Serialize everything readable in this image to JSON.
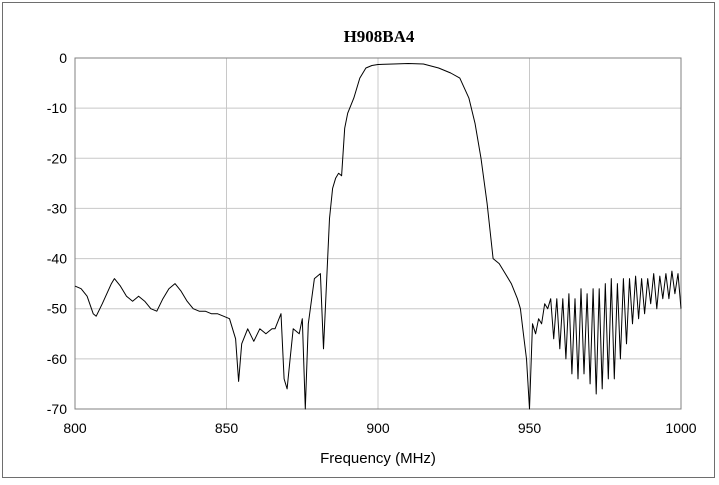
{
  "chart_data": {
    "type": "line",
    "title": "H908BA4",
    "xlabel": "Frequency (MHz)",
    "ylabel": "",
    "xlim": [
      800,
      1000
    ],
    "ylim": [
      -70,
      0
    ],
    "xticks": [
      800,
      850,
      900,
      950,
      1000
    ],
    "yticks": [
      0,
      -10,
      -20,
      -30,
      -40,
      -50,
      -60,
      -70
    ],
    "grid": true,
    "series": [
      {
        "x": [
          800,
          802,
          804,
          806,
          807,
          809,
          812,
          813,
          815,
          817,
          819,
          821,
          823,
          825,
          827,
          829,
          831,
          833,
          835,
          837,
          839,
          841,
          843,
          845,
          847,
          849,
          851,
          853,
          854,
          855,
          857,
          859,
          861,
          863,
          865,
          866,
          868,
          869,
          870,
          871,
          872,
          874,
          875,
          876,
          877,
          879,
          881,
          882,
          883,
          884,
          885,
          886,
          887,
          888,
          889,
          890,
          892,
          894,
          896,
          898,
          900,
          905,
          910,
          915,
          920,
          924,
          927,
          930,
          932,
          934,
          936,
          938,
          940,
          942,
          944,
          946,
          947,
          948,
          949,
          950,
          951,
          952,
          953,
          954,
          955,
          956,
          957,
          958,
          959,
          960,
          961,
          962,
          963,
          964,
          965,
          966,
          967,
          968,
          969,
          970,
          971,
          972,
          973,
          974,
          975,
          976,
          977,
          978,
          979,
          980,
          981,
          982,
          983,
          984,
          985,
          986,
          987,
          988,
          989,
          990,
          991,
          992,
          993,
          994,
          995,
          996,
          997,
          998,
          999,
          1000
        ],
        "y": [
          -45.5,
          -46,
          -47.5,
          -51,
          -51.5,
          -49,
          -45,
          -44,
          -45.5,
          -47.5,
          -48.5,
          -47.5,
          -48.5,
          -50,
          -50.5,
          -48,
          -46,
          -45,
          -46.5,
          -48.5,
          -50,
          -50.5,
          -50.5,
          -51,
          -51,
          -51.5,
          -52,
          -56,
          -64.5,
          -57,
          -54,
          -56.5,
          -54,
          -55,
          -54,
          -54,
          -51,
          -64,
          -66,
          -60,
          -54,
          -55,
          -52,
          -70,
          -53,
          -44,
          -43,
          -58,
          -45,
          -32,
          -26,
          -24,
          -23,
          -23.5,
          -14,
          -11,
          -8,
          -4,
          -2,
          -1.5,
          -1.3,
          -1.2,
          -1.1,
          -1.2,
          -2,
          -3,
          -4,
          -8,
          -13,
          -20,
          -29,
          -40,
          -41,
          -43,
          -45,
          -48,
          -50,
          -55,
          -60,
          -70,
          -53,
          -55,
          -52,
          -53,
          -49,
          -50,
          -48,
          -56,
          -48,
          -58,
          -48,
          -60,
          -47,
          -63,
          -48,
          -64,
          -46,
          -63,
          -47,
          -65,
          -46,
          -67,
          -46,
          -66,
          -45,
          -64,
          -44,
          -64,
          -45,
          -60,
          -44,
          -57,
          -44,
          -53,
          -43.5,
          -52,
          -44,
          -51,
          -44,
          -49,
          -43,
          -50,
          -43.5,
          -48,
          -43,
          -48,
          -42.5,
          -47,
          -43,
          -50
        ]
      }
    ]
  }
}
